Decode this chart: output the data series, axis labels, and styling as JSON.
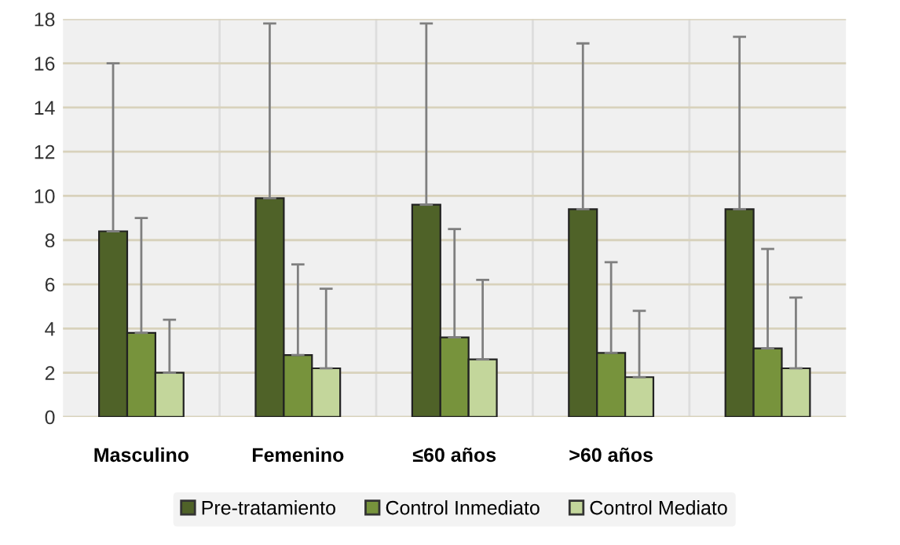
{
  "chart_data": {
    "type": "bar",
    "categories": [
      "Masculino",
      "Femenino",
      "≤60 años",
      ">60 años",
      null
    ],
    "series": [
      {
        "name": "Pre-tratamiento",
        "color": "#4f6228",
        "values": [
          8.4,
          9.9,
          9.6,
          9.4,
          9.4
        ],
        "errors": [
          [
            8.4,
            16.0
          ],
          [
            9.9,
            17.8
          ],
          [
            9.6,
            17.8
          ],
          [
            9.4,
            16.9
          ],
          [
            9.4,
            17.2
          ]
        ]
      },
      {
        "name": "Control Inmediato",
        "color": "#77933c",
        "values": [
          3.8,
          2.8,
          3.6,
          2.9,
          3.1
        ],
        "errors": [
          [
            3.8,
            9.0
          ],
          [
            2.8,
            6.9
          ],
          [
            3.6,
            8.5
          ],
          [
            2.9,
            7.0
          ],
          [
            3.1,
            7.6
          ]
        ]
      },
      {
        "name": "Control Mediato",
        "color": "#c3d69b",
        "values": [
          2.0,
          2.2,
          2.6,
          1.8,
          2.2
        ],
        "errors": [
          [
            2.0,
            4.4
          ],
          [
            2.2,
            5.8
          ],
          [
            2.6,
            6.2
          ],
          [
            1.8,
            4.8
          ],
          [
            2.2,
            5.4
          ]
        ]
      }
    ],
    "ylim": [
      0,
      18
    ],
    "yticks": [
      0,
      2,
      4,
      6,
      8,
      10,
      12,
      14,
      16,
      18
    ],
    "grid": true,
    "legend": "bottom"
  }
}
